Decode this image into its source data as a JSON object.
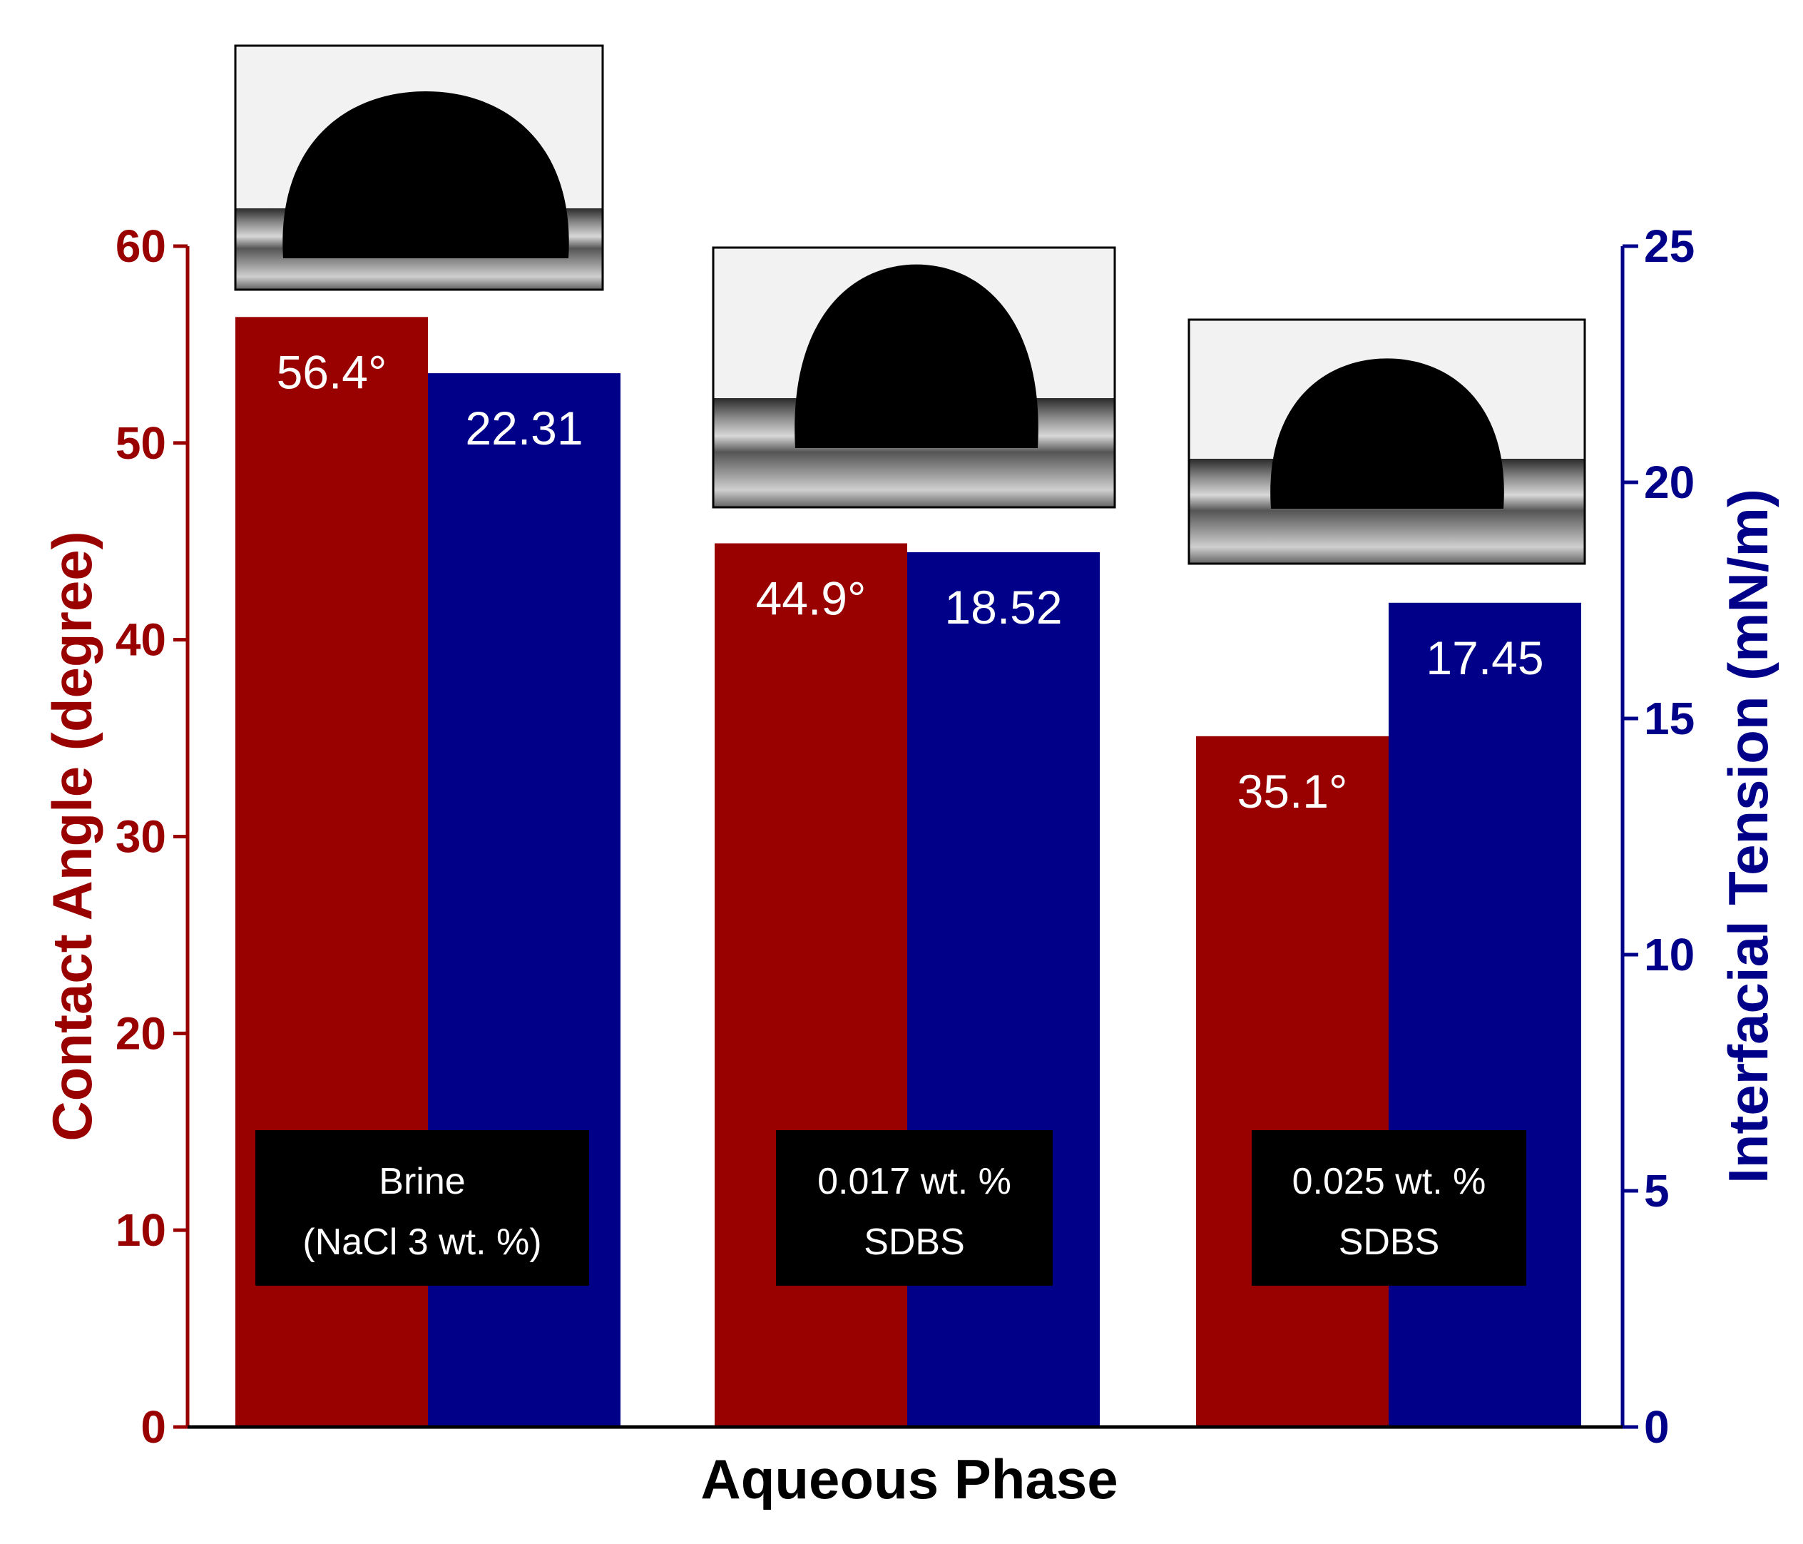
{
  "chart_data": {
    "type": "bar",
    "xlabel": "Aqueous Phase",
    "ylabel_left": "Contact Angle (degree)",
    "ylabel_right": "Interfacial Tension (mN/m)",
    "ylim_left": [
      0,
      60
    ],
    "ylim_right": [
      0,
      25
    ],
    "yticks_left": [
      "0",
      "10",
      "20",
      "30",
      "40",
      "50",
      "60"
    ],
    "yticks_right": [
      "0",
      "5",
      "10",
      "15",
      "20",
      "25"
    ],
    "grid": false,
    "categories": [
      {
        "line1": "Brine",
        "line2": "(NaCl 3 wt. %)"
      },
      {
        "line1": "0.017 wt. %",
        "line2": "SDBS"
      },
      {
        "line1": "0.025 wt. %",
        "line2": "SDBS"
      }
    ],
    "series": [
      {
        "axis": "left",
        "color": "#990000",
        "values": [
          56.4,
          44.9,
          35.1
        ],
        "labels": [
          "56.4°",
          "44.9°",
          "35.1°"
        ]
      },
      {
        "axis": "right",
        "color": "#000088",
        "values": [
          22.31,
          18.52,
          17.45
        ],
        "labels": [
          "22.31",
          "18.52",
          "17.45"
        ]
      }
    ],
    "insets": [
      "droplet image",
      "droplet image",
      "droplet image"
    ]
  },
  "colors": {
    "left_axis": "#990000",
    "right_axis": "#000088",
    "axis_line": "#000000"
  }
}
